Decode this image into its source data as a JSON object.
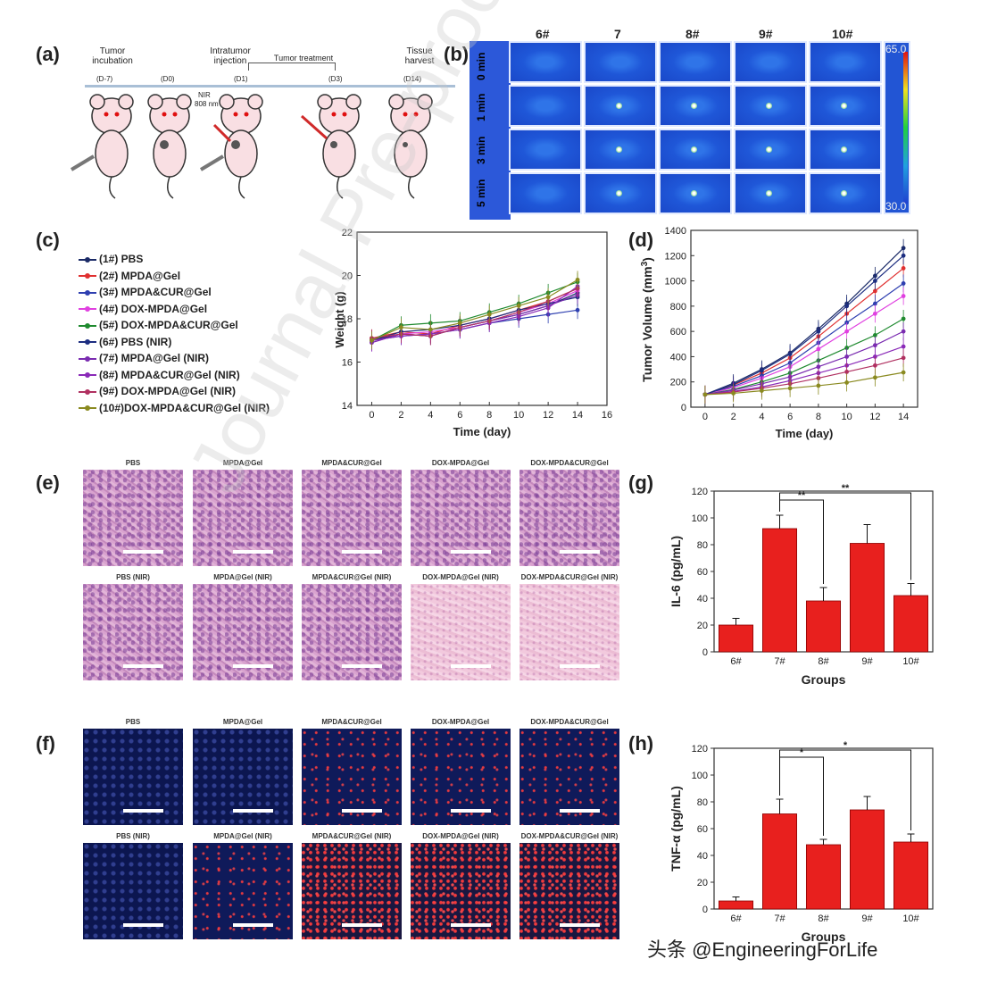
{
  "panels": {
    "a": "(a)",
    "b": "(b)",
    "c": "(c)",
    "d": "(d)",
    "e": "(e)",
    "f": "(f)",
    "g": "(g)",
    "h": "(h)"
  },
  "timeline": {
    "stages": [
      {
        "title": "Tumor incubation",
        "day": "(D-7)"
      },
      {
        "title": "",
        "day": "(D0)"
      },
      {
        "title": "Intratumor injection",
        "day": "(D1)"
      },
      {
        "title": "",
        "day": "(D3)"
      },
      {
        "title": "Tissue harvest",
        "day": "(D14)"
      }
    ],
    "treatment_label": "Tumor treatment",
    "nir_label": "NIR",
    "nir_wavelength": "808 nm"
  },
  "thermal": {
    "columns": [
      "6#",
      "7",
      "8#",
      "9#",
      "10#"
    ],
    "rows": [
      "0 min",
      "1 min",
      "3 min",
      "5 min"
    ],
    "scale_max": "65.0",
    "scale_min": "30.0"
  },
  "legend_c": [
    {
      "label": "(1#) PBS",
      "color": "#1a2a66"
    },
    {
      "label": "(2#) MPDA@Gel",
      "color": "#e03030"
    },
    {
      "label": "(3#) MPDA&CUR@Gel",
      "color": "#2e3fb0"
    },
    {
      "label": "(4#) DOX-MPDA@Gel",
      "color": "#e040e0"
    },
    {
      "label": "(5#) DOX-MPDA&CUR@Gel",
      "color": "#1f8a2f"
    },
    {
      "label": "(6#) PBS (NIR)",
      "color": "#1c2d80"
    },
    {
      "label": "(7#) MPDA@Gel (NIR)",
      "color": "#7a2bb0"
    },
    {
      "label": "(8#) MPDA&CUR@Gel (NIR)",
      "color": "#8a2ab8"
    },
    {
      "label": "(9#) DOX-MPDA@Gel (NIR)",
      "color": "#b03060"
    },
    {
      "label": "(10#)DOX-MPDA&CUR@Gel (NIR)",
      "color": "#8a8a20"
    }
  ],
  "chart_data": [
    {
      "type": "line",
      "panel": "c",
      "xlabel": "Time (day)",
      "ylabel": "Body Weight (g)",
      "ylabel_visible": "Weight (g)",
      "xlim": [
        -1,
        16
      ],
      "ylim": [
        14,
        22
      ],
      "xticks": [
        0,
        2,
        4,
        6,
        8,
        10,
        12,
        14,
        16
      ],
      "yticks": [
        14,
        16,
        18,
        20,
        22
      ],
      "x": [
        0,
        2,
        4,
        6,
        8,
        10,
        12,
        14
      ],
      "series": [
        {
          "name": "(1#) PBS",
          "color": "#1a2a66",
          "values": [
            17.0,
            17.3,
            17.2,
            17.6,
            17.9,
            18.2,
            18.6,
            19.2
          ]
        },
        {
          "name": "(2#) MPDA@Gel",
          "color": "#e03030",
          "values": [
            17.1,
            17.4,
            17.3,
            17.7,
            18.0,
            18.4,
            18.8,
            19.4
          ]
        },
        {
          "name": "(3#) MPDA&CUR@Gel",
          "color": "#2e3fb0",
          "values": [
            17.0,
            17.2,
            17.3,
            17.5,
            17.8,
            18.0,
            18.2,
            18.4
          ]
        },
        {
          "name": "(4#) DOX-MPDA@Gel",
          "color": "#e040e0",
          "values": [
            16.9,
            17.3,
            17.4,
            17.6,
            17.9,
            18.3,
            18.7,
            19.3
          ]
        },
        {
          "name": "(5#) DOX-MPDA&CUR@Gel",
          "color": "#1f8a2f",
          "values": [
            17.0,
            17.7,
            17.8,
            17.9,
            18.3,
            18.7,
            19.2,
            19.7
          ]
        },
        {
          "name": "(6#) PBS (NIR)",
          "color": "#1c2d80",
          "values": [
            17.0,
            17.4,
            17.5,
            17.7,
            18.0,
            18.4,
            18.7,
            19.0
          ]
        },
        {
          "name": "(7#) MPDA@Gel (NIR)",
          "color": "#7a2bb0",
          "values": [
            16.9,
            17.3,
            17.2,
            17.6,
            17.9,
            18.2,
            18.6,
            19.1
          ]
        },
        {
          "name": "(8#) MPDA&CUR@Gel (NIR)",
          "color": "#8a2ab8",
          "values": [
            17.0,
            17.2,
            17.3,
            17.5,
            17.8,
            18.1,
            18.5,
            19.5
          ]
        },
        {
          "name": "(9#) DOX-MPDA@Gel (NIR)",
          "color": "#b03060",
          "values": [
            17.1,
            17.3,
            17.2,
            17.6,
            17.9,
            18.3,
            18.8,
            19.4
          ]
        },
        {
          "name": "(10#)DOX-MPDA&CUR@Gel (NIR)",
          "color": "#8a8a20",
          "values": [
            17.0,
            17.6,
            17.5,
            17.8,
            18.2,
            18.6,
            19.0,
            19.8
          ]
        }
      ]
    },
    {
      "type": "line",
      "panel": "d",
      "xlabel": "Time (day)",
      "ylabel": "Tumor Volume (mm",
      "ylabel_sup": "3",
      "ylabel_end": ")",
      "xlim": [
        -1,
        15
      ],
      "ylim": [
        0,
        1400
      ],
      "xticks": [
        0,
        2,
        4,
        6,
        8,
        10,
        12,
        14
      ],
      "yticks": [
        0,
        200,
        400,
        600,
        800,
        1000,
        1200,
        1400
      ],
      "x": [
        0,
        2,
        4,
        6,
        8,
        10,
        12,
        14
      ],
      "series": [
        {
          "color": "#1a2a66",
          "values": [
            100,
            190,
            300,
            430,
            620,
            820,
            1040,
            1260
          ]
        },
        {
          "color": "#e03030",
          "values": [
            100,
            175,
            270,
            390,
            560,
            740,
            920,
            1100
          ]
        },
        {
          "color": "#2e3fb0",
          "values": [
            100,
            165,
            250,
            350,
            510,
            670,
            820,
            980
          ]
        },
        {
          "color": "#e040e0",
          "values": [
            100,
            155,
            230,
            320,
            460,
            600,
            740,
            880
          ]
        },
        {
          "color": "#1f8a2f",
          "values": [
            100,
            140,
            200,
            270,
            370,
            470,
            570,
            700
          ]
        },
        {
          "color": "#1c2d80",
          "values": [
            100,
            180,
            290,
            420,
            600,
            800,
            1000,
            1200
          ]
        },
        {
          "color": "#7a2bb0",
          "values": [
            100,
            135,
            185,
            240,
            320,
            400,
            490,
            600
          ]
        },
        {
          "color": "#8a2ab8",
          "values": [
            100,
            125,
            160,
            210,
            270,
            330,
            400,
            480
          ]
        },
        {
          "color": "#b03060",
          "values": [
            100,
            120,
            150,
            185,
            230,
            280,
            330,
            390
          ]
        },
        {
          "color": "#8a8a20",
          "values": [
            100,
            110,
            130,
            150,
            170,
            195,
            235,
            275
          ]
        }
      ]
    },
    {
      "type": "bar",
      "panel": "g",
      "categories": [
        "6#",
        "7#",
        "8#",
        "9#",
        "10#"
      ],
      "values": [
        20,
        92,
        38,
        81,
        42
      ],
      "errors": [
        5,
        10,
        10,
        14,
        9
      ],
      "xlabel": "Groups",
      "ylabel": "IL-6 (pg/mL)",
      "ylim": [
        0,
        120
      ],
      "yticks": [
        0,
        20,
        40,
        60,
        80,
        100,
        120
      ],
      "color": "#e8201e",
      "significance": [
        {
          "from": "7#",
          "to": "8#",
          "label": "**"
        },
        {
          "from": "7#",
          "to": "10#",
          "label": "**"
        }
      ]
    },
    {
      "type": "bar",
      "panel": "h",
      "categories": [
        "6#",
        "7#",
        "8#",
        "9#",
        "10#"
      ],
      "values": [
        6,
        71,
        48,
        74,
        50
      ],
      "errors": [
        3,
        11,
        4,
        10,
        6
      ],
      "xlabel": "Groups",
      "ylabel": "TNF-α (pg/mL)",
      "ylim": [
        0,
        120
      ],
      "yticks": [
        0,
        20,
        40,
        60,
        80,
        100,
        120
      ],
      "color": "#e8201e",
      "significance": [
        {
          "from": "7#",
          "to": "8#",
          "label": "*"
        },
        {
          "from": "7#",
          "to": "10#",
          "label": "*"
        }
      ]
    }
  ],
  "histology_e": {
    "top": [
      "PBS",
      "MPDA@Gel",
      "MPDA&CUR@Gel",
      "DOX-MPDA@Gel",
      "DOX-MPDA&CUR@Gel"
    ],
    "bottom": [
      "PBS (NIR)",
      "MPDA@Gel (NIR)",
      "MPDA&CUR@Gel (NIR)",
      "DOX-MPDA@Gel (NIR)",
      "DOX-MPDA&CUR@Gel (NIR)"
    ]
  },
  "histology_f": {
    "top": [
      "PBS",
      "MPDA@Gel",
      "MPDA&CUR@Gel",
      "DOX-MPDA@Gel",
      "DOX-MPDA&CUR@Gel"
    ],
    "bottom": [
      "PBS (NIR)",
      "MPDA@Gel (NIR)",
      "MPDA&CUR@Gel (NIR)",
      "DOX-MPDA@Gel (NIR)",
      "DOX-MPDA&CUR@Gel (NIR)"
    ]
  },
  "watermark": "Journal Pre-proof",
  "credit": "头条 @EngineeringForLife"
}
